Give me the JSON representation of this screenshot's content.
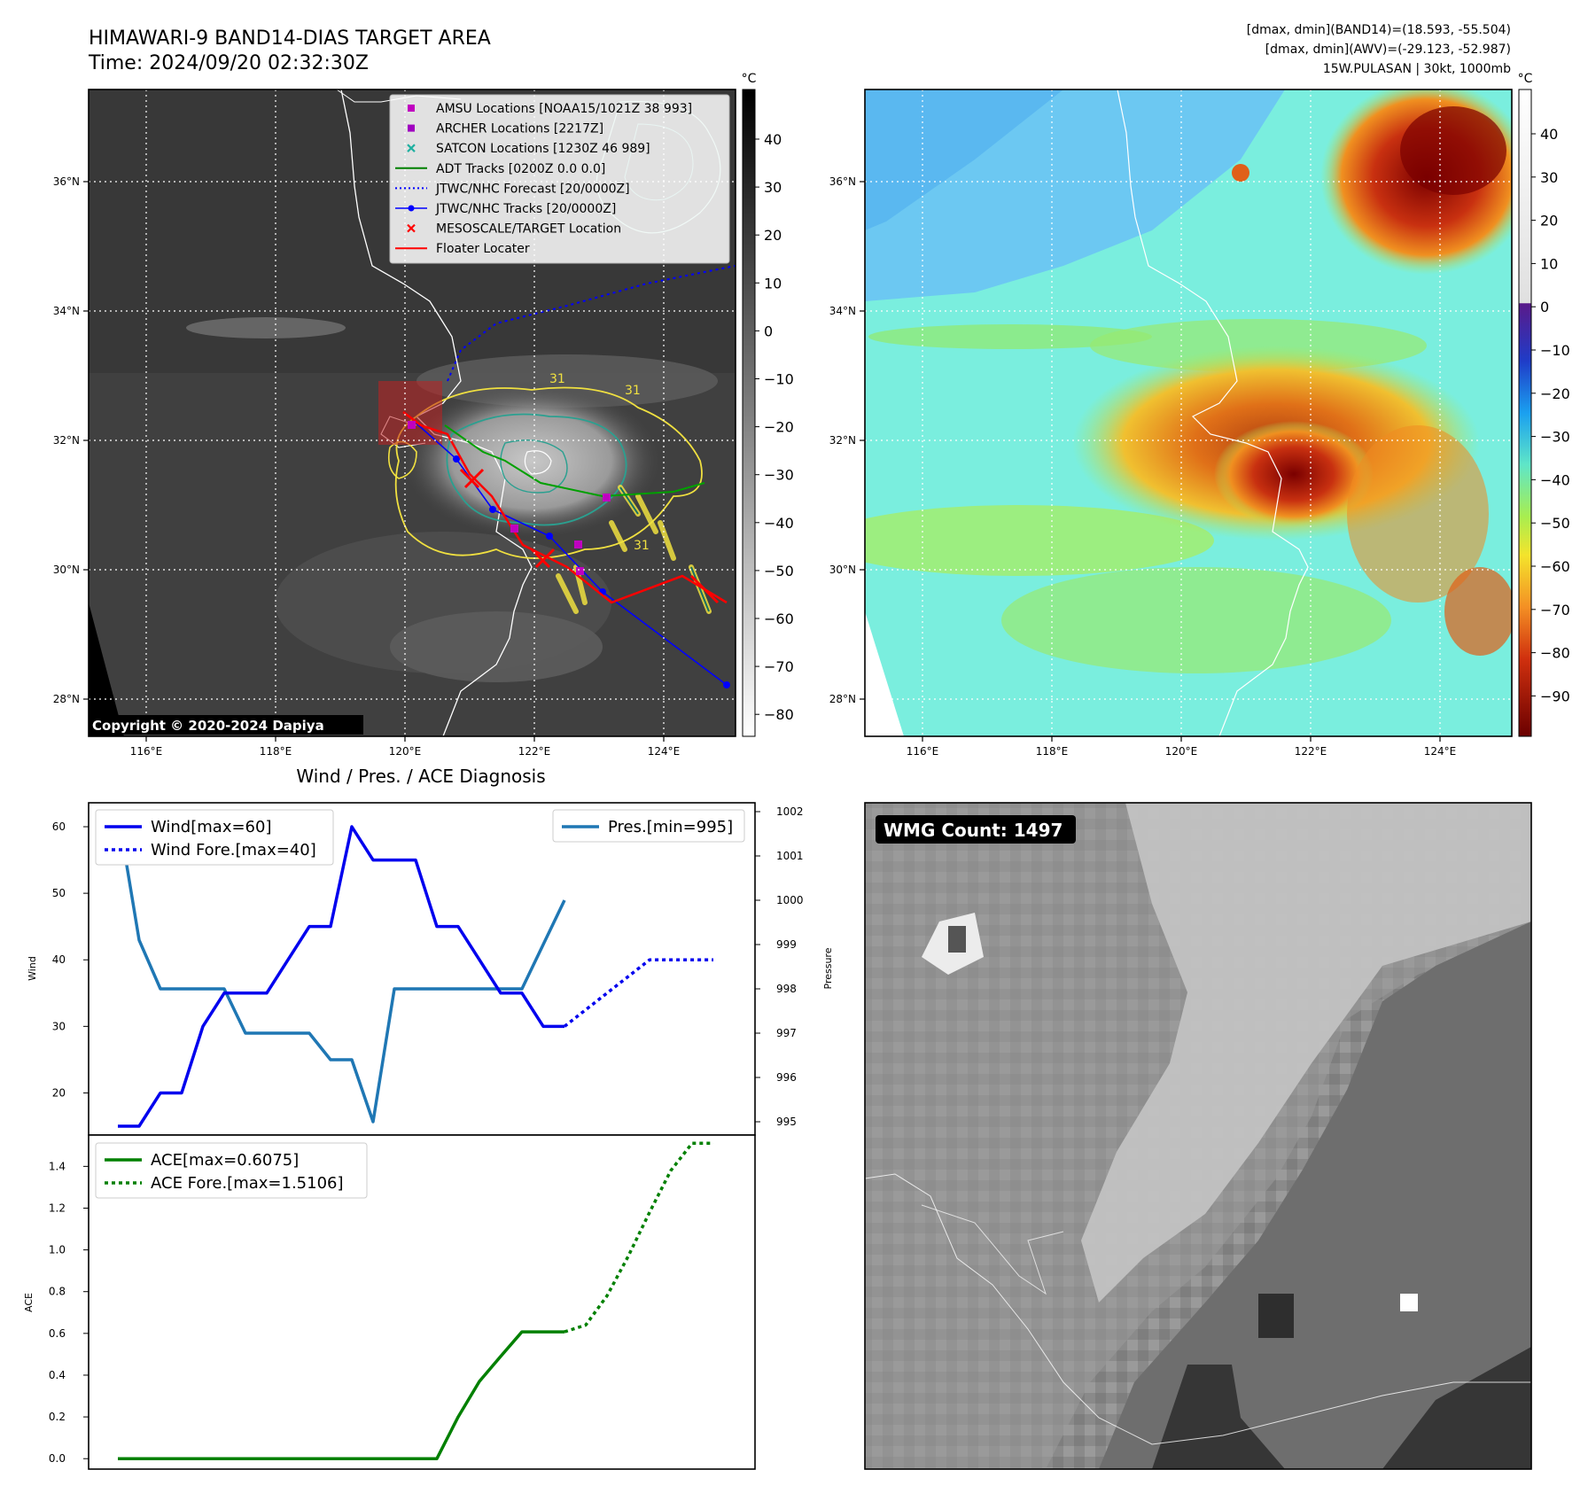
{
  "header": {
    "title_line1": "HIMAWARI-9 BAND14-DIAS TARGET AREA",
    "title_line2": "Time: 2024/09/20 02:32:30Z",
    "stats_line1": "[dmax, dmin](BAND14)=(18.593, -55.504)",
    "stats_line2": "[dmax, dmin](AWV)=(-29.123, -52.987)",
    "stats_line3": "15W.PULASAN | 30kt, 1000mb"
  },
  "map_left": {
    "lon_labels": [
      "116°E",
      "118°E",
      "120°E",
      "122°E",
      "124°E"
    ],
    "lat_labels": [
      "36°N",
      "34°N",
      "32°N",
      "30°N",
      "28°N"
    ],
    "copyright": "Copyright © 2020-2024 Dapiya",
    "contour_labels": [
      "31",
      "31",
      "31"
    ],
    "colorbar": {
      "unit": "°C",
      "ticks": [
        "40",
        "30",
        "20",
        "10",
        "0",
        "−10",
        "−20",
        "−30",
        "−40",
        "−50",
        "−60",
        "−70",
        "−80"
      ]
    },
    "legend": [
      {
        "label": "AMSU Locations [NOAA15/1021Z 38 993]",
        "marker": "square",
        "color": "#c000c0"
      },
      {
        "label": "ARCHER Locations [2217Z]",
        "marker": "square",
        "color": "#a000c0"
      },
      {
        "label": "SATCON Locations [1230Z 46 989]",
        "marker": "x",
        "color": "#20b0a0"
      },
      {
        "label": "ADT Tracks [0200Z 0.0 0.0]",
        "marker": "line",
        "color": "#008000"
      },
      {
        "label": "JTWC/NHC Forecast [20/0000Z]",
        "marker": "dotted",
        "color": "#0000ff"
      },
      {
        "label": "JTWC/NHC Tracks [20/0000Z]",
        "marker": "line-dot",
        "color": "#0000ff"
      },
      {
        "label": "MESOSCALE/TARGET Location",
        "marker": "x",
        "color": "#ff0000"
      },
      {
        "label": "Floater Locater",
        "marker": "line",
        "color": "#ff0000"
      }
    ]
  },
  "map_right": {
    "lon_labels": [
      "116°E",
      "118°E",
      "120°E",
      "122°E",
      "124°E"
    ],
    "lat_labels": [
      "36°N",
      "34°N",
      "32°N",
      "30°N",
      "28°N"
    ],
    "colorbar": {
      "unit": "°C",
      "ticks": [
        "40",
        "30",
        "20",
        "10",
        "0",
        "−10",
        "−20",
        "−30",
        "−40",
        "−50",
        "−60",
        "−70",
        "−80",
        "−90"
      ]
    }
  },
  "diagnosis": {
    "title": "Wind / Pres. / ACE Diagnosis",
    "wind_ylabel": "Wind",
    "pres_ylabel": "Pressure",
    "ace_ylabel": "ACE",
    "wind_ticks": [
      "60",
      "50",
      "40",
      "30",
      "20"
    ],
    "pres_ticks": [
      "1002",
      "1001",
      "1000",
      "999",
      "998",
      "997",
      "996",
      "995"
    ],
    "ace_ticks": [
      "1.4",
      "1.2",
      "1.0",
      "0.8",
      "0.6",
      "0.4",
      "0.2",
      "0.0"
    ],
    "legend_wind": "Wind[max=60]",
    "legend_wind_fore": "Wind Fore.[max=40]",
    "legend_pres": "Pres.[min=995]",
    "legend_ace": "ACE[max=0.6075]",
    "legend_ace_fore": "ACE Fore.[max=1.5106]"
  },
  "wmg": {
    "badge": "WMG Count: 1497"
  },
  "colors": {
    "wind": "#0000ee",
    "pressure": "#1f77b4",
    "ace": "#008000",
    "floater": "#ff0000",
    "adt": "#008000"
  },
  "chart_data": [
    {
      "type": "line",
      "title": "Wind / Pres. / ACE Diagnosis",
      "ylabel": "Wind",
      "ylim": [
        15,
        62
      ],
      "series": [
        {
          "name": "Wind[max=60]",
          "x": [
            0,
            1,
            2,
            3,
            4,
            5,
            6,
            7,
            8,
            9,
            10,
            11,
            12,
            13,
            14,
            15,
            16,
            17,
            18,
            19,
            20,
            21
          ],
          "values": [
            15,
            15,
            20,
            20,
            30,
            35,
            35,
            35,
            40,
            45,
            45,
            60,
            55,
            55,
            55,
            45,
            45,
            40,
            35,
            35,
            30,
            30
          ]
        },
        {
          "name": "Wind Fore.[max=40]",
          "x": [
            21,
            22,
            23,
            24,
            25,
            26,
            27,
            28
          ],
          "values": [
            30,
            32.5,
            35,
            37.5,
            40,
            40,
            40,
            40
          ]
        }
      ]
    },
    {
      "type": "line",
      "ylabel": "Pressure",
      "ylim": [
        994.7,
        1002.2
      ],
      "series": [
        {
          "name": "Pres.[min=995]",
          "x": [
            0,
            1,
            2,
            3,
            4,
            5,
            6,
            7,
            8,
            9,
            10,
            11,
            12,
            13,
            14,
            15,
            16,
            17,
            18,
            19,
            20,
            21
          ],
          "values": [
            1002,
            999.1,
            998,
            998,
            998,
            998,
            997,
            997,
            997,
            997,
            996.4,
            996.4,
            995,
            998,
            998,
            998,
            998,
            998,
            998,
            998,
            999,
            1000
          ]
        }
      ]
    },
    {
      "type": "line",
      "ylabel": "ACE",
      "ylim": [
        -0.05,
        1.55
      ],
      "series": [
        {
          "name": "ACE[max=0.6075]",
          "x": [
            0,
            1,
            2,
            3,
            4,
            5,
            6,
            7,
            8,
            9,
            10,
            11,
            12,
            13,
            14,
            15,
            16,
            17,
            18,
            19,
            20,
            21
          ],
          "values": [
            0,
            0,
            0,
            0,
            0,
            0,
            0,
            0,
            0,
            0,
            0,
            0,
            0,
            0,
            0,
            0,
            0.2,
            0.37,
            0.49,
            0.6075,
            0.6075,
            0.6075
          ]
        },
        {
          "name": "ACE Fore.[max=1.5106]",
          "x": [
            21,
            22,
            23,
            24,
            25,
            26,
            27,
            28
          ],
          "values": [
            0.6075,
            0.64,
            0.78,
            0.97,
            1.18,
            1.38,
            1.5106,
            1.5106
          ]
        }
      ]
    }
  ]
}
